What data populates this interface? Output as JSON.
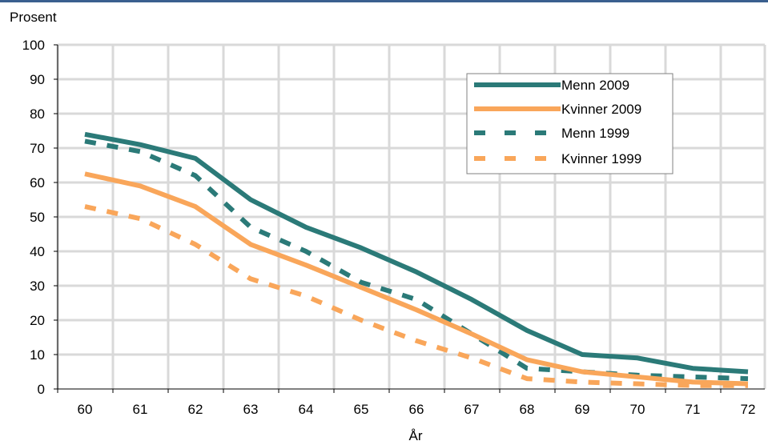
{
  "colors": {
    "top_rule": "#3a5f8f",
    "grid": "#d9d9d9",
    "axis": "#000000",
    "teal": "#2b7a78",
    "orange": "#f9a65a"
  },
  "chart_data": {
    "type": "line",
    "ylabel": "Prosent",
    "xlabel": "År",
    "x": [
      60,
      61,
      62,
      63,
      64,
      65,
      66,
      67,
      68,
      69,
      70,
      71,
      72
    ],
    "xlim": [
      60,
      72
    ],
    "ylim": [
      0,
      100
    ],
    "yticks": [
      0,
      10,
      20,
      30,
      40,
      50,
      60,
      70,
      80,
      90,
      100
    ],
    "grid": true,
    "legend_position": "top-right",
    "series": [
      {
        "name": "Menn 2009",
        "style": "solid",
        "color": "#2b7a78",
        "values": [
          74,
          71,
          67,
          55,
          47,
          41,
          34,
          26,
          17,
          10,
          9,
          6,
          5
        ]
      },
      {
        "name": "Kvinner 2009",
        "style": "solid",
        "color": "#f9a65a",
        "values": [
          62.5,
          59,
          53,
          42,
          36,
          29.5,
          23,
          16,
          8.5,
          5,
          3.5,
          2,
          1.5
        ]
      },
      {
        "name": "Menn 1999",
        "style": "dashed",
        "color": "#2b7a78",
        "values": [
          72,
          69,
          62,
          47,
          40,
          31,
          26,
          16,
          6,
          5,
          4,
          3.5,
          3
        ]
      },
      {
        "name": "Kvinner 1999",
        "style": "dashed",
        "color": "#f9a65a",
        "values": [
          53,
          49.5,
          42,
          32,
          27,
          20,
          14,
          9,
          3,
          2,
          1.5,
          1,
          1
        ]
      }
    ]
  }
}
